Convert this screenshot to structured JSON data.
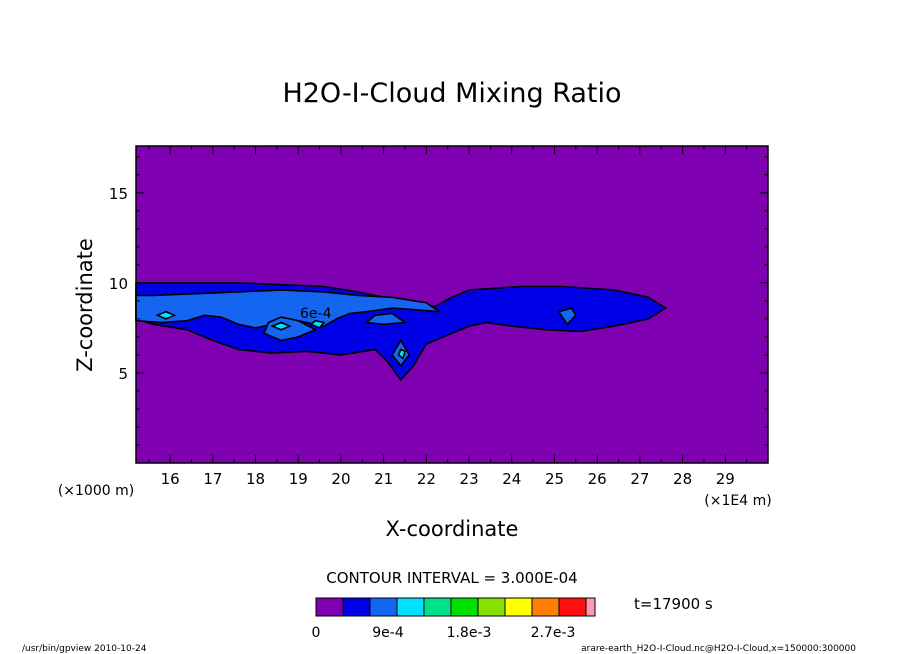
{
  "chart_data": {
    "type": "contour",
    "title": "H2O-I-Cloud Mixing Ratio",
    "xlabel": "X-coordinate",
    "ylabel": "Z-coordinate",
    "x_unit_label": "(×1E4 m)",
    "y_unit_label": "(×1000 m)",
    "xlim": [
      15.2,
      30
    ],
    "ylim": [
      0,
      17.6
    ],
    "x_ticks": [
      16,
      17,
      18,
      19,
      20,
      21,
      22,
      23,
      24,
      25,
      26,
      27,
      28,
      29
    ],
    "y_ticks": [
      5,
      10,
      15
    ],
    "contour_interval_text": "CONTOUR INTERVAL = 3.000E-04",
    "time_text": "t=17900 s",
    "inline_label": "6e-4",
    "colorbar": {
      "colors": [
        "#7f00b0",
        "#0000e6",
        "#1466f0",
        "#00e0ff",
        "#00e08a",
        "#00e000",
        "#88e000",
        "#ffff00",
        "#ff8000",
        "#ff1010",
        "#ff9aa8"
      ],
      "labels": [
        "0",
        "9e-4",
        "1.8e-3",
        "2.7e-3"
      ]
    },
    "footer_left": "/usr/bin/gpview  2010-10-24",
    "footer_right": "arare-earth_H2O-I-Cloud.nc@H2O-I-Cloud,x=150000:300000",
    "regions": [
      {
        "level": 1,
        "points": [
          [
            15.2,
            8.0
          ],
          [
            15.6,
            7.7
          ],
          [
            16.4,
            7.4
          ],
          [
            17.0,
            6.8
          ],
          [
            17.6,
            6.3
          ],
          [
            18.4,
            6.1
          ],
          [
            19.2,
            6.2
          ],
          [
            20.0,
            6.0
          ],
          [
            20.8,
            6.3
          ],
          [
            21.1,
            5.6
          ],
          [
            21.4,
            4.6
          ],
          [
            21.7,
            5.4
          ],
          [
            22.0,
            6.6
          ],
          [
            22.6,
            7.2
          ],
          [
            23.0,
            7.6
          ],
          [
            23.4,
            7.8
          ],
          [
            24.0,
            7.6
          ],
          [
            24.8,
            7.4
          ],
          [
            25.6,
            7.3
          ],
          [
            26.4,
            7.6
          ],
          [
            27.2,
            8.0
          ],
          [
            27.6,
            8.6
          ],
          [
            27.2,
            9.2
          ],
          [
            26.4,
            9.6
          ],
          [
            25.2,
            9.8
          ],
          [
            24.2,
            9.8
          ],
          [
            23.0,
            9.6
          ],
          [
            22.6,
            9.2
          ],
          [
            22.2,
            8.7
          ],
          [
            21.6,
            8.9
          ],
          [
            21.0,
            9.2
          ],
          [
            20.4,
            9.5
          ],
          [
            19.6,
            9.8
          ],
          [
            18.6,
            9.9
          ],
          [
            17.6,
            10.0
          ],
          [
            16.6,
            10.0
          ],
          [
            15.8,
            10.0
          ],
          [
            15.2,
            10.0
          ]
        ]
      },
      {
        "level": 2,
        "points": [
          [
            15.2,
            7.9
          ],
          [
            15.8,
            7.8
          ],
          [
            16.4,
            7.9
          ],
          [
            16.8,
            8.2
          ],
          [
            17.2,
            8.1
          ],
          [
            17.6,
            7.7
          ],
          [
            18.0,
            7.5
          ],
          [
            18.4,
            7.7
          ],
          [
            18.8,
            8.0
          ],
          [
            19.2,
            7.8
          ],
          [
            19.6,
            7.6
          ],
          [
            19.9,
            8.0
          ],
          [
            20.2,
            8.3
          ],
          [
            20.6,
            8.4
          ],
          [
            21.2,
            8.6
          ],
          [
            21.8,
            8.5
          ],
          [
            22.3,
            8.4
          ],
          [
            22.0,
            8.9
          ],
          [
            21.2,
            9.2
          ],
          [
            20.4,
            9.3
          ],
          [
            19.6,
            9.5
          ],
          [
            18.6,
            9.6
          ],
          [
            17.6,
            9.5
          ],
          [
            16.6,
            9.4
          ],
          [
            15.6,
            9.3
          ],
          [
            15.2,
            9.3
          ]
        ]
      },
      {
        "level": 2,
        "points": [
          [
            18.2,
            7.2
          ],
          [
            18.6,
            6.8
          ],
          [
            19.0,
            7.0
          ],
          [
            19.4,
            7.4
          ],
          [
            19.0,
            7.9
          ],
          [
            18.6,
            8.1
          ],
          [
            18.3,
            7.8
          ]
        ]
      },
      {
        "level": 2,
        "points": [
          [
            20.6,
            7.8
          ],
          [
            21.0,
            7.7
          ],
          [
            21.5,
            7.8
          ],
          [
            21.2,
            8.3
          ],
          [
            20.8,
            8.2
          ]
        ]
      },
      {
        "level": 2,
        "points": [
          [
            21.2,
            6.0
          ],
          [
            21.4,
            5.4
          ],
          [
            21.6,
            6.0
          ],
          [
            21.4,
            6.8
          ]
        ]
      },
      {
        "level": 2,
        "points": [
          [
            25.1,
            8.4
          ],
          [
            25.3,
            7.7
          ],
          [
            25.5,
            8.2
          ],
          [
            25.4,
            8.6
          ]
        ]
      },
      {
        "level": 3,
        "points": [
          [
            15.7,
            8.2
          ],
          [
            15.9,
            8.0
          ],
          [
            16.1,
            8.2
          ],
          [
            15.9,
            8.4
          ]
        ]
      },
      {
        "level": 3,
        "points": [
          [
            18.4,
            7.6
          ],
          [
            18.6,
            7.4
          ],
          [
            18.8,
            7.6
          ],
          [
            18.6,
            7.8
          ]
        ]
      },
      {
        "level": 3,
        "points": [
          [
            19.3,
            7.7
          ],
          [
            19.5,
            7.5
          ],
          [
            19.6,
            7.8
          ],
          [
            19.4,
            7.9
          ]
        ]
      },
      {
        "level": 3,
        "points": [
          [
            21.35,
            6.0
          ],
          [
            21.45,
            5.8
          ],
          [
            21.5,
            6.2
          ],
          [
            21.4,
            6.3
          ]
        ]
      }
    ]
  }
}
